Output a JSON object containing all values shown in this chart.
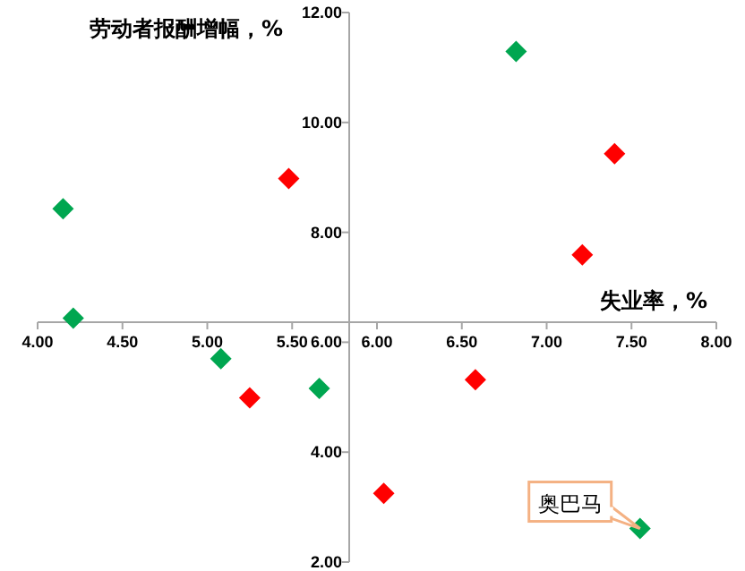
{
  "chart_data": {
    "type": "scatter",
    "xlabel": "失业率，%",
    "ylabel": "劳动者报酬增幅，%",
    "xlim": [
      4,
      8
    ],
    "ylim": [
      2,
      12
    ],
    "xticks": [
      {
        "value": 4,
        "label": "4.00"
      },
      {
        "value": 4.5,
        "label": "4.50"
      },
      {
        "value": 5,
        "label": "5.00"
      },
      {
        "value": 5.5,
        "label": "5.50"
      },
      {
        "value": 6,
        "label": "6.00"
      },
      {
        "value": 6.5,
        "label": "6.50"
      },
      {
        "value": 7,
        "label": "7.00"
      },
      {
        "value": 7.5,
        "label": "7.50"
      },
      {
        "value": 8,
        "label": "8.00"
      }
    ],
    "yticks": [
      {
        "value": 2,
        "label": "2.00"
      },
      {
        "value": 4,
        "label": "4.00"
      },
      {
        "value": 6,
        "label": "6.00"
      },
      {
        "value": 8,
        "label": "8.00"
      },
      {
        "value": 10,
        "label": "10.00"
      },
      {
        "value": 12,
        "label": "12.00"
      }
    ],
    "marker": "diamond",
    "series": [
      {
        "color": "#00a650",
        "x": [
          4.15,
          4.21,
          5.08,
          5.66,
          6.82,
          7.55
        ],
        "values": [
          8.43,
          6.44,
          5.7,
          5.16,
          11.29,
          2.61
        ]
      },
      {
        "color": "#ff0000",
        "x": [
          5.25,
          5.48,
          7.4,
          7.21,
          6.58,
          6.04
        ],
        "values": [
          4.99,
          8.98,
          9.43,
          7.59,
          5.32,
          3.25
        ]
      }
    ],
    "annotations": [
      {
        "text": "奥巴马",
        "x": 7.55,
        "y": 2.61
      }
    ]
  }
}
